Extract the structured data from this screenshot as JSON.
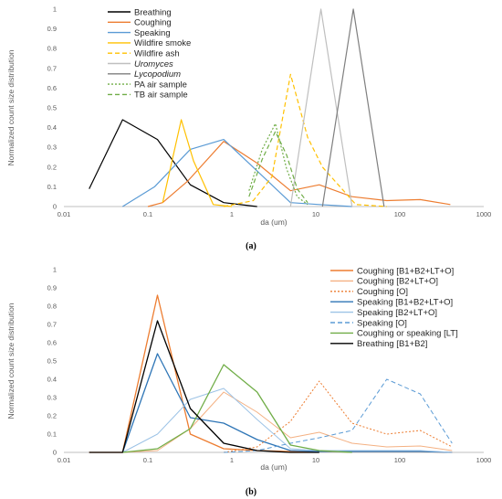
{
  "chart_data": [
    {
      "type": "line",
      "caption": "(a)",
      "xlabel": "da (um)",
      "ylabel": "Normalized count size distribution",
      "xscale": "log",
      "xlim": [
        0.01,
        1000
      ],
      "ylim": [
        0,
        1
      ],
      "xticks": [
        "0.01",
        "0.1",
        "1",
        "10",
        "100",
        "1000"
      ],
      "yticks": [
        "0",
        "0.1",
        "0.2",
        "0.3",
        "0.4",
        "0.5",
        "0.6",
        "0.7",
        "0.8",
        "0.9",
        "1"
      ],
      "legend_position": "top-left",
      "series": [
        {
          "name": "Breathing",
          "color": "#000000",
          "dash": "solid",
          "italic": false,
          "x": [
            0.02,
            0.05,
            0.13,
            0.32,
            0.8,
            2.0
          ],
          "y": [
            0.09,
            0.44,
            0.34,
            0.11,
            0.02,
            0.0
          ]
        },
        {
          "name": "Coughing",
          "color": "#ED7D31",
          "dash": "solid",
          "italic": false,
          "x": [
            0.1,
            0.15,
            0.3,
            0.8,
            2.0,
            5.0,
            11,
            27,
            70,
            175,
            400
          ],
          "y": [
            0.0,
            0.02,
            0.13,
            0.33,
            0.22,
            0.08,
            0.11,
            0.05,
            0.03,
            0.035,
            0.01
          ]
        },
        {
          "name": "Speaking",
          "color": "#5B9BD5",
          "dash": "solid",
          "italic": false,
          "x": [
            0.05,
            0.12,
            0.32,
            0.8,
            2.0,
            5.0,
            11,
            27
          ],
          "y": [
            0.0,
            0.1,
            0.29,
            0.34,
            0.18,
            0.02,
            0.01,
            0.0
          ]
        },
        {
          "name": "Wildfire smoke",
          "color": "#FFC000",
          "dash": "solid",
          "italic": false,
          "x": [
            0.15,
            0.25,
            0.35,
            0.6,
            1.0
          ],
          "y": [
            0.02,
            0.44,
            0.23,
            0.01,
            0.0
          ]
        },
        {
          "name": "Wildfire ash",
          "color": "#FFC000",
          "dash": "dashed",
          "italic": false,
          "x": [
            0.8,
            1.8,
            3.0,
            5.0,
            8.0,
            12,
            30,
            70
          ],
          "y": [
            0.0,
            0.03,
            0.15,
            0.67,
            0.35,
            0.2,
            0.01,
            0.0
          ]
        },
        {
          "name": "Uromyces",
          "color": "#BFBFBF",
          "dash": "solid",
          "italic": true,
          "x": [
            5.0,
            11.5,
            27
          ],
          "y": [
            0.0,
            1.0,
            0.0
          ]
        },
        {
          "name": "Lycopodium",
          "color": "#7F7F7F",
          "dash": "solid",
          "italic": true,
          "x": [
            12,
            28,
            65
          ],
          "y": [
            0.0,
            1.0,
            0.0
          ]
        },
        {
          "name": "PA air sample",
          "color": "#70AD47",
          "dash": "dotted",
          "italic": false,
          "x": [
            1.6,
            2.3,
            3.3,
            4.5,
            6.0,
            8.0
          ],
          "y": [
            0.08,
            0.29,
            0.42,
            0.19,
            0.05,
            0.01
          ]
        },
        {
          "name": "TB air sample",
          "color": "#70AD47",
          "dash": "dashed",
          "italic": false,
          "x": [
            1.6,
            2.3,
            3.3,
            4.5,
            6.0,
            8.0
          ],
          "y": [
            0.05,
            0.24,
            0.38,
            0.26,
            0.09,
            0.02
          ]
        }
      ]
    },
    {
      "type": "line",
      "caption": "(b)",
      "xlabel": "da (um)",
      "ylabel": "Normalized count size distribution",
      "xscale": "log",
      "xlim": [
        0.01,
        1000
      ],
      "ylim": [
        0,
        1
      ],
      "xticks": [
        "0.01",
        "0.1",
        "1",
        "10",
        "100",
        "1000"
      ],
      "yticks": [
        "0",
        "0.1",
        "0.2",
        "0.3",
        "0.4",
        "0.5",
        "0.6",
        "0.7",
        "0.8",
        "0.9",
        "1"
      ],
      "legend_position": "top-right",
      "series": [
        {
          "name": "Coughing [B1+B2+LT+O]",
          "color": "#ED7D31",
          "dash": "solid",
          "width": 1.3,
          "x": [
            0.02,
            0.05,
            0.13,
            0.32,
            0.8,
            2.0,
            5.0,
            11,
            27,
            70,
            175,
            420
          ],
          "y": [
            0,
            0,
            0.86,
            0.1,
            0.02,
            0.01,
            0.005,
            0.005,
            0.005,
            0.005,
            0.005,
            0
          ]
        },
        {
          "name": "Coughing [B2+LT+O]",
          "color": "#F4B183",
          "dash": "solid",
          "width": 1.0,
          "x": [
            0.05,
            0.13,
            0.32,
            0.8,
            2.0,
            5.0,
            11,
            27,
            70,
            175,
            420
          ],
          "y": [
            0,
            0.01,
            0.13,
            0.33,
            0.22,
            0.08,
            0.11,
            0.05,
            0.03,
            0.035,
            0.01
          ]
        },
        {
          "name": "Coughing [O]",
          "color": "#ED7D31",
          "dash": "dotted",
          "width": 1.0,
          "x": [
            0.8,
            2.0,
            5.0,
            11,
            27,
            70,
            175,
            420
          ],
          "y": [
            0,
            0.03,
            0.17,
            0.39,
            0.16,
            0.1,
            0.12,
            0.03
          ]
        },
        {
          "name": "Speaking [B1+B2+LT+O]",
          "color": "#2E75B6",
          "dash": "solid",
          "width": 1.3,
          "x": [
            0.05,
            0.13,
            0.32,
            0.8,
            2.0,
            5.0,
            11,
            27,
            70,
            175,
            420
          ],
          "y": [
            0,
            0.54,
            0.19,
            0.16,
            0.07,
            0.01,
            0.005,
            0.005,
            0.005,
            0.005,
            0
          ]
        },
        {
          "name": "Speaking [B2+LT+O]",
          "color": "#9DC3E6",
          "dash": "solid",
          "width": 1.0,
          "x": [
            0.05,
            0.13,
            0.32,
            0.8,
            2.0,
            5.0,
            11,
            27,
            70,
            175,
            420
          ],
          "y": [
            0,
            0.1,
            0.29,
            0.35,
            0.18,
            0.02,
            0.01,
            0.01,
            0.01,
            0.01,
            0
          ]
        },
        {
          "name": "Speaking [O]",
          "color": "#5B9BD5",
          "dash": "dashed",
          "width": 1.0,
          "x": [
            0.8,
            2.0,
            5.0,
            11,
            27,
            70,
            175,
            420
          ],
          "y": [
            0,
            0.01,
            0.05,
            0.08,
            0.12,
            0.4,
            0.32,
            0.05
          ]
        },
        {
          "name": "Coughing or speaking [LT]",
          "color": "#70AD47",
          "dash": "solid",
          "width": 1.3,
          "x": [
            0.05,
            0.13,
            0.32,
            0.8,
            2.0,
            5.0,
            11,
            27
          ],
          "y": [
            0,
            0.02,
            0.13,
            0.48,
            0.33,
            0.04,
            0.01,
            0
          ]
        },
        {
          "name": "Breathing [B1+B2]",
          "color": "#000000",
          "dash": "solid",
          "width": 1.3,
          "x": [
            0.02,
            0.05,
            0.13,
            0.32,
            0.8,
            2.0,
            5.0,
            11
          ],
          "y": [
            0,
            0,
            0.72,
            0.24,
            0.05,
            0.01,
            0,
            0
          ]
        }
      ]
    }
  ]
}
